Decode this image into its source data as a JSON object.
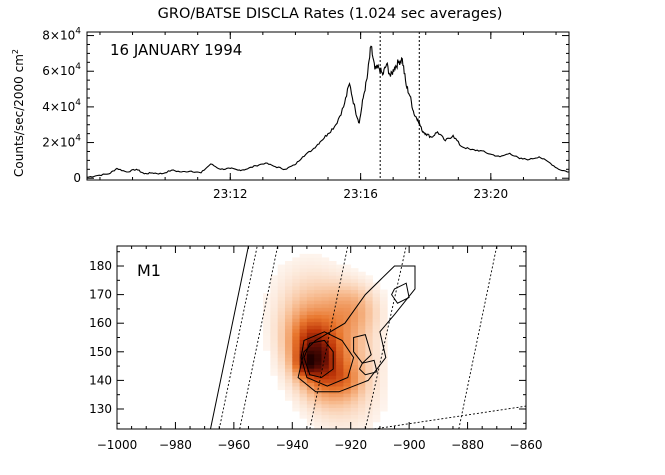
{
  "chart_data": [
    {
      "type": "line",
      "title": "GRO/BATSE DISCLA Rates (1.024 sec averages)",
      "annotation": "16 JANUARY 1994",
      "ylabel": {
        "base": "Counts/sec/2000 cm",
        "exp": "2"
      },
      "xlabel": "",
      "xlim": [
        23.1267,
        23.3733
      ],
      "ylim": [
        -1000,
        82000
      ],
      "x_ticks": [
        {
          "value": 23.2,
          "label": "23:12"
        },
        {
          "value": 23.2667,
          "label": "23:16"
        },
        {
          "value": 23.3333,
          "label": "23:20"
        }
      ],
      "y_ticks": [
        {
          "value": 0,
          "mant": "0",
          "exp": ""
        },
        {
          "value": 20000,
          "mant": "2×10",
          "exp": "4"
        },
        {
          "value": 40000,
          "mant": "4×10",
          "exp": "4"
        },
        {
          "value": 60000,
          "mant": "6×10",
          "exp": "4"
        },
        {
          "value": 80000,
          "mant": "8×10",
          "exp": "4"
        }
      ],
      "markers": [
        23.2767,
        23.2967
      ],
      "series": [
        {
          "name": "rate",
          "x": [
            23.1267,
            23.132,
            23.138,
            23.142,
            23.147,
            23.152,
            23.156,
            23.16,
            23.165,
            23.17,
            23.175,
            23.18,
            23.185,
            23.19,
            23.195,
            23.2,
            23.204,
            23.208,
            23.213,
            23.218,
            23.223,
            23.228,
            23.233,
            23.237,
            23.242,
            23.246,
            23.25,
            23.254,
            23.258,
            23.261,
            23.264,
            23.266,
            23.268,
            23.27,
            23.272,
            23.274,
            23.276,
            23.278,
            23.28,
            23.282,
            23.284,
            23.286,
            23.288,
            23.29,
            23.292,
            23.294,
            23.296,
            23.298,
            23.3,
            23.303,
            23.306,
            23.31,
            23.314,
            23.318,
            23.323,
            23.328,
            23.333,
            23.338,
            23.343,
            23.348,
            23.353,
            23.358,
            23.363,
            23.368,
            23.3733
          ],
          "y": [
            500,
            1500,
            2500,
            5500,
            3500,
            5000,
            2500,
            3000,
            2500,
            4500,
            3500,
            4000,
            3000,
            8000,
            5000,
            5500,
            4500,
            5000,
            7000,
            8500,
            6500,
            5000,
            7500,
            12000,
            16000,
            20500,
            25000,
            30000,
            40000,
            53000,
            38000,
            31000,
            45000,
            56000,
            74000,
            61000,
            62000,
            58000,
            64000,
            57000,
            62000,
            65000,
            67000,
            52000,
            46000,
            36000,
            33000,
            27000,
            25000,
            23000,
            26000,
            21000,
            24000,
            18000,
            16000,
            15500,
            13500,
            12000,
            14000,
            11000,
            10500,
            12000,
            9000,
            5000,
            3500
          ]
        }
      ]
    },
    {
      "type": "heatmap",
      "panel_label": "M1",
      "xlabel": "",
      "ylabel": "",
      "xlim": [
        -1000,
        -860
      ],
      "ylim": [
        123,
        187
      ],
      "x_ticks": [
        -1000,
        -980,
        -960,
        -940,
        -920,
        -900,
        -880,
        -860
      ],
      "y_ticks": [
        130,
        140,
        150,
        160,
        170,
        180
      ],
      "colormap": [
        "#ffffff",
        "#f7b98c",
        "#e8762d",
        "#bf3608",
        "#6a0f04",
        "#200000"
      ],
      "blobs": [
        {
          "cx": -928,
          "cy": 152,
          "sx": 9,
          "sy": 15,
          "rot": -18,
          "amp": 0.35
        },
        {
          "cx": -932,
          "cy": 149,
          "sx": 5,
          "sy": 8,
          "rot": -18,
          "amp": 0.55
        },
        {
          "cx": -935,
          "cy": 146,
          "sx": 2.5,
          "sy": 3,
          "rot": 0,
          "amp": 0.35
        },
        {
          "cx": -919,
          "cy": 165,
          "sx": 6,
          "sy": 6,
          "rot": 0,
          "amp": 0.18
        },
        {
          "cx": -922,
          "cy": 140,
          "sx": 4,
          "sy": 4,
          "rot": 0,
          "amp": 0.15
        }
      ],
      "contours": [
        [
          [
            -932,
            154
          ],
          [
            -922,
            160
          ],
          [
            -915,
            170
          ],
          [
            -905,
            180
          ],
          [
            -898,
            180
          ],
          [
            -898,
            172
          ],
          [
            -905,
            163
          ],
          [
            -910,
            157
          ],
          [
            -908,
            148
          ],
          [
            -914,
            140
          ],
          [
            -924,
            136
          ],
          [
            -932,
            136
          ],
          [
            -938,
            141
          ],
          [
            -936,
            150
          ],
          [
            -932,
            154
          ]
        ],
        [
          [
            -936,
            154
          ],
          [
            -929,
            157
          ],
          [
            -923,
            154
          ],
          [
            -919,
            148
          ],
          [
            -921,
            141
          ],
          [
            -928,
            138
          ],
          [
            -935,
            141
          ],
          [
            -937,
            148
          ],
          [
            -936,
            154
          ]
        ],
        [
          [
            -934,
            153
          ],
          [
            -929,
            154
          ],
          [
            -926,
            150
          ],
          [
            -926,
            144
          ],
          [
            -930,
            141
          ],
          [
            -934,
            142
          ],
          [
            -936,
            148
          ],
          [
            -934,
            153
          ]
        ],
        [
          [
            -919,
            155
          ],
          [
            -915,
            156
          ],
          [
            -913,
            149
          ],
          [
            -916,
            146
          ],
          [
            -919,
            150
          ],
          [
            -919,
            155
          ]
        ],
        [
          [
            -905,
            172
          ],
          [
            -901,
            174
          ],
          [
            -900,
            169
          ],
          [
            -904,
            167
          ],
          [
            -906,
            170
          ],
          [
            -905,
            172
          ]
        ],
        [
          [
            -916,
            146
          ],
          [
            -912,
            147
          ],
          [
            -911,
            143
          ],
          [
            -915,
            142
          ],
          [
            -917,
            144
          ],
          [
            -916,
            146
          ]
        ]
      ],
      "limb_line": [
        [
          -968,
          123
        ],
        [
          -955,
          187
        ]
      ],
      "grid_lines": [
        [
          [
            -965,
            123
          ],
          [
            -952,
            187
          ]
        ],
        [
          [
            -958,
            123
          ],
          [
            -945,
            187
          ]
        ],
        [
          [
            -934,
            123
          ],
          [
            -921,
            187
          ]
        ],
        [
          [
            -915,
            123
          ],
          [
            -901,
            187
          ]
        ],
        [
          [
            -883,
            123
          ],
          [
            -870,
            187
          ]
        ],
        [
          [
            -912,
            123
          ],
          [
            -860,
            131
          ]
        ]
      ]
    }
  ]
}
